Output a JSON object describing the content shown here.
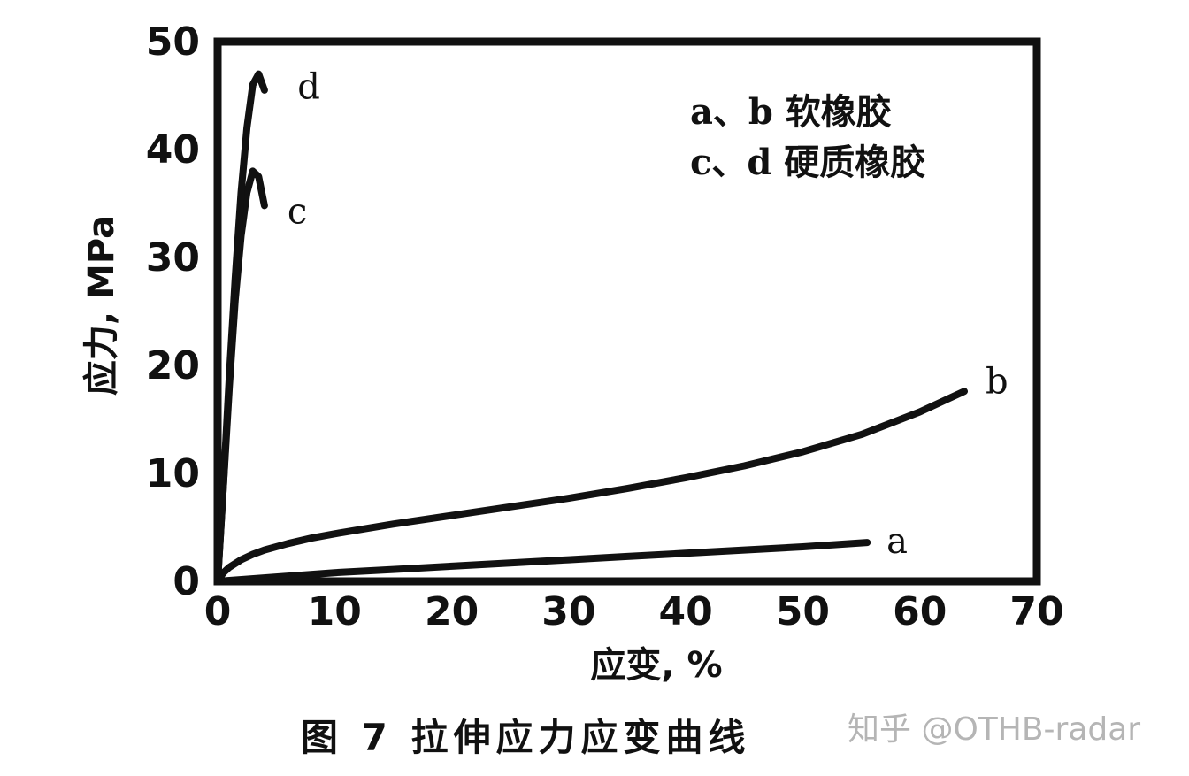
{
  "chart_data": {
    "type": "line",
    "xlabel": "应变, %",
    "ylabel": "应力, MPa",
    "xlim": [
      0,
      70
    ],
    "ylim": [
      0,
      50
    ],
    "x_ticks": [
      0,
      10,
      20,
      30,
      40,
      50,
      60,
      70
    ],
    "y_ticks": [
      0,
      10,
      20,
      30,
      40,
      50
    ],
    "grid": false,
    "legend_position": "top-right",
    "legend": [
      "a、b 软橡胶",
      "c、d 硬质橡胶"
    ],
    "series": [
      {
        "name": "a",
        "x": [
          0,
          5,
          10,
          15,
          20,
          25,
          30,
          35,
          40,
          45,
          50,
          55.5
        ],
        "y": [
          0,
          0.4,
          0.8,
          1.1,
          1.4,
          1.7,
          2.0,
          2.3,
          2.6,
          2.9,
          3.2,
          3.6
        ]
      },
      {
        "name": "b",
        "x": [
          0,
          0.5,
          1,
          2,
          3,
          4,
          6,
          8,
          10,
          15,
          20,
          25,
          30,
          35,
          40,
          45,
          50,
          55,
          60,
          63.8
        ],
        "y": [
          0,
          0.8,
          1.3,
          2.0,
          2.5,
          2.9,
          3.5,
          4.0,
          4.4,
          5.3,
          6.1,
          6.9,
          7.7,
          8.6,
          9.6,
          10.7,
          12.0,
          13.6,
          15.7,
          17.6
        ]
      },
      {
        "name": "c",
        "x": [
          0,
          0.5,
          1,
          1.5,
          2,
          2.5,
          3,
          3.5,
          4
        ],
        "y": [
          0,
          9,
          18,
          26,
          32,
          36,
          38,
          37.5,
          34.8
        ]
      },
      {
        "name": "d",
        "x": [
          0,
          0.5,
          1,
          1.5,
          2,
          2.5,
          3,
          3.5,
          4
        ],
        "y": [
          0,
          9,
          19,
          28,
          36,
          42,
          46,
          47,
          45.5
        ]
      }
    ]
  },
  "caption": "图 7   拉伸应力应变曲线",
  "watermark": "知乎 @OTHB-radar"
}
